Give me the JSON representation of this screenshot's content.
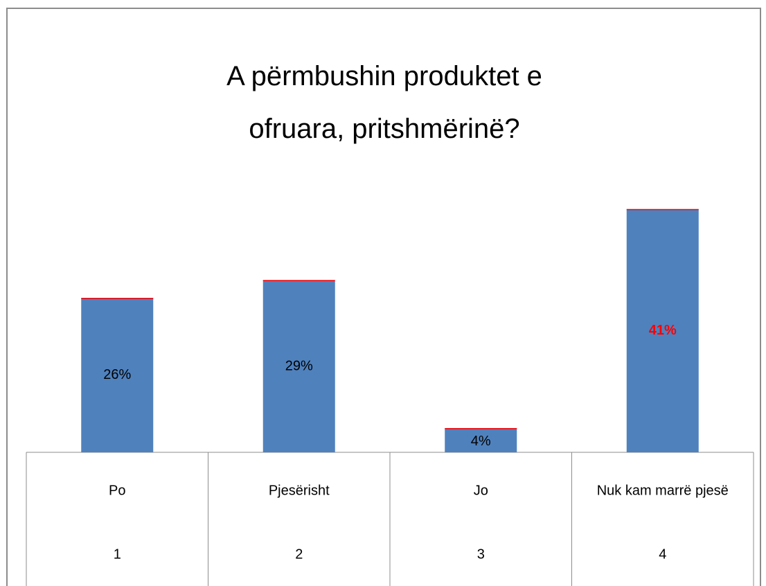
{
  "chart_data": {
    "type": "bar",
    "title": "A përmbushin produktet e ofruara, pritshmërinë?",
    "categories": [
      "Po",
      "Pjesërisht",
      "Jo",
      "Nuk kam marrë pjesë"
    ],
    "categories2": [
      "1",
      "2",
      "3",
      "4"
    ],
    "values": [
      26,
      29,
      4,
      41
    ],
    "value_labels": [
      "26%",
      "29%",
      "4%",
      "41%"
    ],
    "color": "#4f81bd",
    "highlight_color": "#ff0000"
  }
}
